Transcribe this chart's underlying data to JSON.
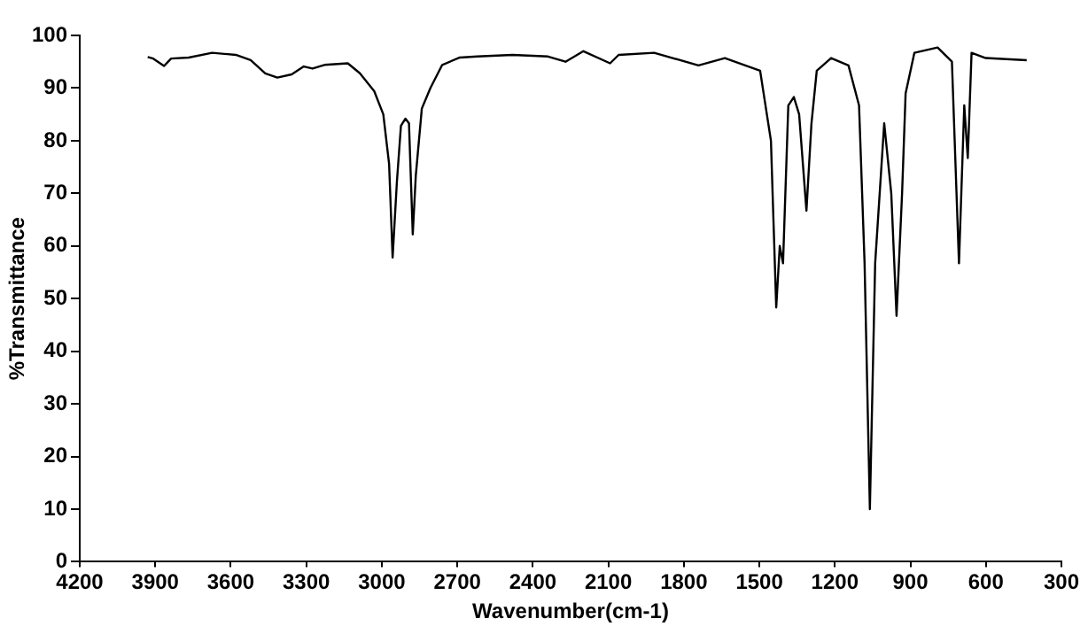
{
  "chart_data": {
    "type": "line",
    "xlabel": "Wavenumber(cm-1)",
    "ylabel": "%Transmittance",
    "xlim": [
      4200,
      300
    ],
    "xticks": [
      4200,
      3900,
      3600,
      3300,
      3000,
      2700,
      2400,
      2100,
      1800,
      1500,
      1200,
      900,
      600,
      300
    ],
    "ylim": [
      0,
      100
    ],
    "yticks": [
      0,
      10,
      20,
      30,
      40,
      50,
      60,
      70,
      80,
      90,
      100
    ],
    "grid": false,
    "legend": false,
    "marker": "none",
    "line_style": "solid",
    "series": [
      {
        "color": "#000000",
        "x": [
          3930,
          3908,
          3865,
          3837,
          3767,
          3674,
          3580,
          3521,
          3463,
          3415,
          3358,
          3310,
          3275,
          3228,
          3135,
          3087,
          3030,
          2994,
          2971,
          2957,
          2940,
          2924,
          2906,
          2892,
          2877,
          2865,
          2841,
          2807,
          2760,
          2690,
          2620,
          2481,
          2340,
          2270,
          2199,
          2093,
          2059,
          1918,
          1742,
          1637,
          1497,
          1454,
          1433,
          1419,
          1406,
          1385,
          1363,
          1342,
          1313,
          1293,
          1272,
          1215,
          1146,
          1104,
          1082,
          1061,
          1040,
          1004,
          976,
          955,
          933,
          919,
          884,
          792,
          735,
          707,
          686,
          672,
          657,
          601,
          438
        ],
        "values": [
          95.9,
          95.6,
          94.2,
          95.6,
          95.8,
          96.7,
          96.3,
          95.3,
          92.8,
          92.0,
          92.6,
          94.1,
          93.7,
          94.4,
          94.7,
          92.8,
          89.4,
          85.0,
          75.6,
          57.8,
          72.2,
          82.8,
          84.2,
          83.3,
          62.2,
          73.3,
          86.1,
          90.0,
          94.4,
          95.8,
          96.0,
          96.3,
          96.0,
          95.0,
          97.0,
          94.7,
          96.3,
          96.7,
          94.3,
          95.7,
          93.3,
          80.0,
          48.3,
          60.0,
          56.7,
          86.7,
          88.3,
          85.0,
          66.7,
          83.3,
          93.3,
          95.7,
          94.3,
          86.7,
          56.7,
          10.0,
          56.7,
          83.3,
          70.0,
          46.7,
          70.0,
          89.0,
          96.7,
          97.7,
          95.0,
          56.7,
          86.7,
          76.7,
          96.7,
          95.7,
          95.3
        ]
      }
    ]
  }
}
